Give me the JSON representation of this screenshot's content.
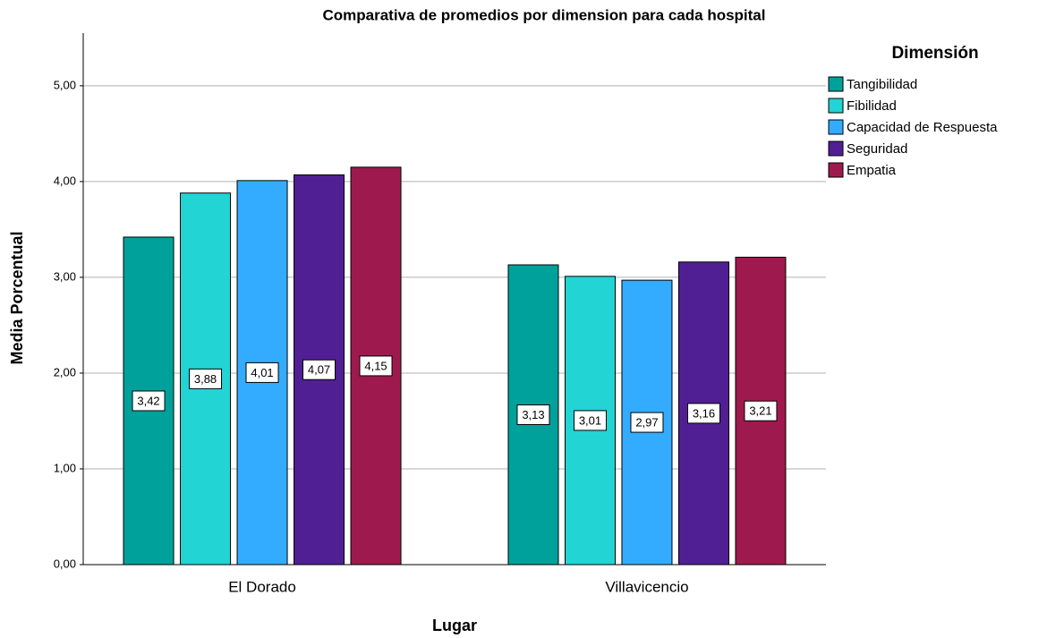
{
  "chart_data": {
    "type": "bar",
    "title": "Comparativa de promedios por dimension para cada hospital",
    "x_label": "Lugar",
    "y_label": "Media Porcentual",
    "legend_title": "Dimensión",
    "categories": [
      "El Dorado",
      "Villavicencio"
    ],
    "series": [
      {
        "name": "Tangibilidad",
        "color": "#00a19a",
        "values": [
          3.42,
          3.13
        ],
        "value_labels": [
          "3,42",
          "3,13"
        ]
      },
      {
        "name": "Fibilidad",
        "color": "#22d4d4",
        "values": [
          3.88,
          3.01
        ],
        "value_labels": [
          "3,88",
          "3,01"
        ]
      },
      {
        "name": "Capacidad de Respuesta",
        "color": "#33acff",
        "values": [
          4.01,
          2.97
        ],
        "value_labels": [
          "4,01",
          "2,97"
        ]
      },
      {
        "name": "Seguridad",
        "color": "#511f94",
        "values": [
          4.07,
          3.16
        ],
        "value_labels": [
          "4,07",
          "3,16"
        ]
      },
      {
        "name": "Empatia",
        "color": "#9e1a4e",
        "values": [
          4.15,
          3.21
        ],
        "value_labels": [
          "4,15",
          "3,21"
        ]
      }
    ],
    "ylim": [
      0,
      5.55
    ],
    "yticks": [
      {
        "value": 0,
        "label": "0,00"
      },
      {
        "value": 1,
        "label": "1,00"
      },
      {
        "value": 2,
        "label": "2,00"
      },
      {
        "value": 3,
        "label": "3,00"
      },
      {
        "value": 4,
        "label": "4,00"
      },
      {
        "value": 5,
        "label": "5,00"
      }
    ],
    "grid": true,
    "legend_position": "right"
  }
}
